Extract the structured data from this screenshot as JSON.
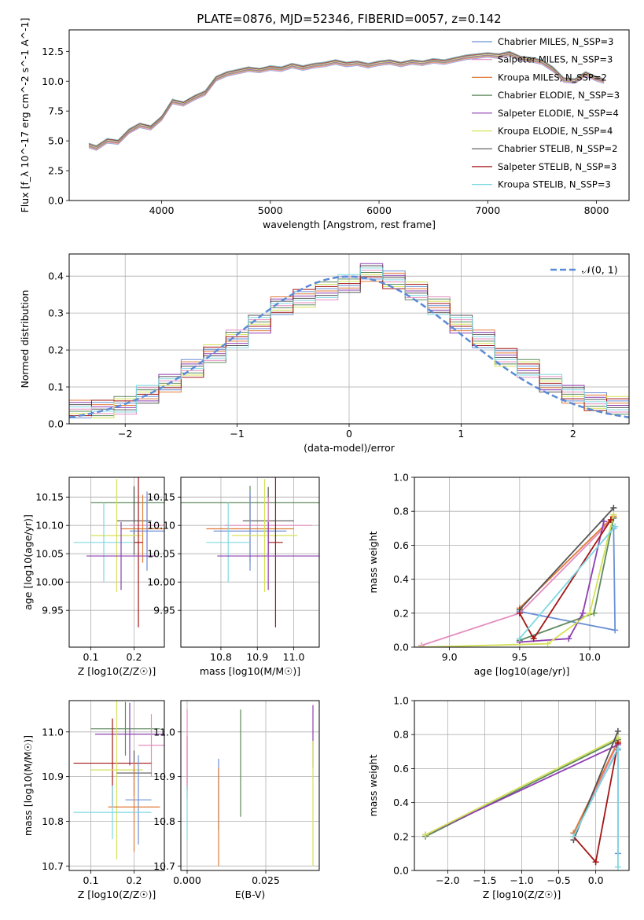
{
  "figure_title": "PLATE=0876, MJD=52346, FIBERID=0057, z=0.142",
  "colors": {
    "axis": "#000000",
    "grid": "#b0b0b0",
    "normal_curve": "#5b8bd6"
  },
  "chart_data": [
    {
      "id": "spectrum",
      "type": "line",
      "title": "PLATE=0876, MJD=52346, FIBERID=0057, z=0.142",
      "xlabel": "wavelength [Angstrom, rest frame]",
      "ylabel": "Flux [f_λ 10^-17 erg cm^-2 s^-1 A^-1]",
      "xlim": [
        3150,
        8300
      ],
      "ylim": [
        0,
        14.3
      ],
      "xticks": [
        4000,
        5000,
        6000,
        7000,
        8000
      ],
      "yticks": [
        0.0,
        2.5,
        5.0,
        7.5,
        10.0,
        12.5
      ],
      "grid": false,
      "legend_position": "right",
      "legend": [
        {
          "name": "Chabrier MILES, N_SSP=3",
          "color": "#6a90d6"
        },
        {
          "name": "Salpeter MILES, N_SSP=3",
          "color": "#e58cc0"
        },
        {
          "name": "Kroupa MILES, N_SSP=2",
          "color": "#e07b39"
        },
        {
          "name": "Chabrier ELODIE, N_SSP=3",
          "color": "#5e8a5e"
        },
        {
          "name": "Salpeter ELODIE, N_SSP=4",
          "color": "#8e3fb0"
        },
        {
          "name": "Kroupa ELODIE, N_SSP=4",
          "color": "#d4e157"
        },
        {
          "name": "Chabrier STELIB, N_SSP=2",
          "color": "#555555"
        },
        {
          "name": "Salpeter STELIB, N_SSP=3",
          "color": "#a31515"
        },
        {
          "name": "Kroupa STELIB, N_SSP=3",
          "color": "#7fd8e0"
        }
      ],
      "data_series": {
        "name": "data",
        "color": "#808080",
        "x": [
          3330,
          3400,
          3500,
          3600,
          3700,
          3800,
          3900,
          4000,
          4100,
          4200,
          4300,
          4400,
          4500,
          4600,
          4700,
          4800,
          4900,
          5000,
          5100,
          5200,
          5300,
          5400,
          5500,
          5600,
          5700,
          5800,
          5900,
          6000,
          6100,
          6200,
          6300,
          6400,
          6500,
          6600,
          6700,
          6800,
          6900,
          7000,
          7100,
          7200,
          7300,
          7400,
          7500,
          7600,
          7700,
          7800,
          7900,
          8000,
          8070
        ],
        "y": [
          4.8,
          4.6,
          5.2,
          5.0,
          6.0,
          6.5,
          6.2,
          7.0,
          8.5,
          8.2,
          8.8,
          9.2,
          10.4,
          10.8,
          11.0,
          11.2,
          11.0,
          11.3,
          11.2,
          11.5,
          11.3,
          11.5,
          11.6,
          11.8,
          11.6,
          11.7,
          11.5,
          11.7,
          11.8,
          11.6,
          11.8,
          11.7,
          11.9,
          11.8,
          12.0,
          12.2,
          12.3,
          12.4,
          12.3,
          12.5,
          12.1,
          12.0,
          11.8,
          11.2,
          10.3,
          10.2,
          10.8,
          10.4,
          10.2
        ]
      },
      "model_curve": {
        "x": [
          3330,
          3400,
          3500,
          3600,
          3700,
          3800,
          3900,
          4000,
          4100,
          4200,
          4300,
          4400,
          4500,
          4600,
          4700,
          4800,
          4900,
          5000,
          5100,
          5200,
          5300,
          5400,
          5500,
          5600,
          5700,
          5800,
          5900,
          6000,
          6100,
          6200,
          6300,
          6400,
          6500,
          6600,
          6700,
          6800,
          6900,
          7000,
          7100,
          7200,
          7300,
          7400,
          7500,
          7600,
          7700,
          7800,
          7900,
          8000,
          8070
        ],
        "y": [
          4.6,
          4.4,
          5.0,
          4.9,
          5.8,
          6.3,
          6.1,
          6.9,
          8.3,
          8.1,
          8.6,
          9.0,
          10.2,
          10.6,
          10.8,
          11.0,
          10.9,
          11.1,
          11.0,
          11.3,
          11.1,
          11.3,
          11.4,
          11.6,
          11.4,
          11.5,
          11.3,
          11.5,
          11.6,
          11.4,
          11.6,
          11.5,
          11.7,
          11.6,
          11.8,
          12.0,
          12.1,
          12.2,
          12.1,
          12.3,
          11.9,
          11.8,
          11.6,
          11.0,
          10.1,
          10.0,
          10.6,
          10.2,
          10.0
        ]
      }
    },
    {
      "id": "residuals",
      "type": "line",
      "xlabel": "(data-model)/error",
      "ylabel": "Normed distribution",
      "xlim": [
        -2.5,
        2.5
      ],
      "ylim": [
        0,
        0.46
      ],
      "xticks": [
        -2,
        -1,
        0,
        1,
        2
      ],
      "yticks": [
        0.0,
        0.1,
        0.2,
        0.3,
        0.4
      ],
      "grid": true,
      "legend_position": "top-right",
      "normal_label": "𝒩(0, 1)",
      "hist_x": [
        -2.5,
        -2.3,
        -2.1,
        -1.9,
        -1.7,
        -1.5,
        -1.3,
        -1.1,
        -0.9,
        -0.7,
        -0.5,
        -0.3,
        -0.1,
        0.1,
        0.3,
        0.5,
        0.7,
        0.9,
        1.1,
        1.3,
        1.5,
        1.7,
        1.9,
        2.1,
        2.3
      ],
      "hist_y": [
        0.04,
        0.04,
        0.05,
        0.08,
        0.11,
        0.15,
        0.19,
        0.23,
        0.27,
        0.32,
        0.34,
        0.36,
        0.38,
        0.41,
        0.39,
        0.36,
        0.32,
        0.27,
        0.23,
        0.18,
        0.15,
        0.11,
        0.08,
        0.06,
        0.05
      ]
    },
    {
      "id": "age_vs_Z",
      "type": "scatter",
      "xlabel": "Z [log10(Z/Z☉)]",
      "ylabel": "age  [log10(age/yr)]",
      "xlim": [
        0.05,
        0.27
      ],
      "ylim": [
        9.885,
        10.185
      ],
      "xticks": [
        0.1,
        0.2
      ],
      "yticks": [
        9.95,
        10.0,
        10.05,
        10.1,
        10.15
      ],
      "grid": true,
      "points": [
        {
          "x": 0.2,
          "y": 10.14,
          "xerr": 0.1,
          "yerr": 0.03,
          "color": "#5e8a5e"
        },
        {
          "x": 0.2,
          "y": 10.108,
          "xerr": 0.04,
          "yerr": 0.06,
          "color": "#555555"
        },
        {
          "x": 0.23,
          "y": 10.1,
          "xerr": 0.04,
          "yerr": 0.05,
          "color": "#e58cc0"
        },
        {
          "x": 0.22,
          "y": 10.094,
          "xerr": 0.05,
          "yerr": 0.06,
          "color": "#e07b39"
        },
        {
          "x": 0.23,
          "y": 10.09,
          "xerr": 0.04,
          "yerr": 0.07,
          "color": "#6a90d6"
        },
        {
          "x": 0.16,
          "y": 10.082,
          "xerr": 0.06,
          "yerr": 0.1,
          "color": "#d4e157"
        },
        {
          "x": 0.13,
          "y": 10.07,
          "xerr": 0.07,
          "yerr": 0.07,
          "color": "#7fd8e0"
        },
        {
          "x": 0.21,
          "y": 10.07,
          "xerr": 0.01,
          "yerr": 0.15,
          "color": "#a31515"
        },
        {
          "x": 0.17,
          "y": 10.046,
          "xerr": 0.08,
          "yerr": 0.06,
          "color": "#8e3fb0"
        }
      ]
    },
    {
      "id": "age_vs_mass",
      "type": "scatter",
      "xlabel": "mass [log10(M/M☉)]",
      "ylabel": "",
      "xlim": [
        10.69,
        11.07
      ],
      "ylim": [
        9.885,
        10.185
      ],
      "xticks": [
        10.8,
        10.9,
        11.0
      ],
      "yticks": [
        9.95,
        10.0,
        10.05,
        10.1,
        10.15
      ],
      "grid": true,
      "points": [
        {
          "x": 10.88,
          "y": 10.14,
          "xerr": 0.19,
          "yerr": 0.03,
          "color": "#5e8a5e"
        },
        {
          "x": 10.93,
          "y": 10.108,
          "xerr": 0.07,
          "yerr": 0.06,
          "color": "#555555"
        },
        {
          "x": 10.93,
          "y": 10.1,
          "xerr": 0.12,
          "yerr": 0.05,
          "color": "#e58cc0"
        },
        {
          "x": 10.88,
          "y": 10.094,
          "xerr": 0.12,
          "yerr": 0.06,
          "color": "#e07b39"
        },
        {
          "x": 10.88,
          "y": 10.09,
          "xerr": 0.1,
          "yerr": 0.07,
          "color": "#6a90d6"
        },
        {
          "x": 10.92,
          "y": 10.082,
          "xerr": 0.09,
          "yerr": 0.1,
          "color": "#d4e157"
        },
        {
          "x": 10.82,
          "y": 10.07,
          "xerr": 0.06,
          "yerr": 0.07,
          "color": "#7fd8e0"
        },
        {
          "x": 10.95,
          "y": 10.07,
          "xerr": 0.02,
          "yerr": 0.15,
          "color": "#a31515"
        },
        {
          "x": 10.93,
          "y": 10.046,
          "xerr": 0.14,
          "yerr": 0.06,
          "color": "#8e3fb0"
        }
      ]
    },
    {
      "id": "weight_vs_age",
      "type": "line",
      "xlabel": "age  [log10(age/yr)]",
      "ylabel": "mass weight",
      "xlim": [
        8.75,
        10.28
      ],
      "ylim": [
        0,
        1.0
      ],
      "xticks": [
        9.0,
        9.5,
        10.0
      ],
      "yticks": [
        0.0,
        0.2,
        0.4,
        0.6,
        0.8,
        1.0
      ],
      "grid": true,
      "series": [
        {
          "color": "#6a90d6",
          "x": [
            9.5,
            10.18,
            10.17
          ],
          "y": [
            0.21,
            0.1,
            0.7
          ]
        },
        {
          "color": "#e58cc0",
          "x": [
            8.8,
            9.5,
            10.17
          ],
          "y": [
            0.01,
            0.2,
            0.76
          ]
        },
        {
          "color": "#e07b39",
          "x": [
            9.5,
            10.17
          ],
          "y": [
            0.23,
            0.77
          ]
        },
        {
          "color": "#5e8a5e",
          "x": [
            9.5,
            10.03,
            10.17
          ],
          "y": [
            0.04,
            0.2,
            0.76
          ]
        },
        {
          "color": "#8e3fb0",
          "x": [
            9.5,
            9.85,
            9.95,
            10.1
          ],
          "y": [
            0.03,
            0.05,
            0.2,
            0.74
          ]
        },
        {
          "color": "#d4e157",
          "x": [
            8.8,
            9.7,
            10.0,
            10.17
          ],
          "y": [
            0.0,
            0.02,
            0.2,
            0.78
          ]
        },
        {
          "color": "#555555",
          "x": [
            9.5,
            10.17
          ],
          "y": [
            0.22,
            0.82
          ]
        },
        {
          "color": "#a31515",
          "x": [
            9.5,
            9.6,
            10.15
          ],
          "y": [
            0.2,
            0.05,
            0.75
          ]
        },
        {
          "color": "#7fd8e0",
          "x": [
            9.5,
            10.18
          ],
          "y": [
            0.05,
            0.71
          ]
        }
      ]
    },
    {
      "id": "mass_vs_Z",
      "type": "scatter",
      "xlabel": "Z [log10(Z/Z☉)]",
      "ylabel": "mass [log10(M/M☉)]",
      "xlim": [
        0.05,
        0.27
      ],
      "ylim": [
        10.69,
        11.07
      ],
      "xticks": [
        0.1,
        0.2
      ],
      "yticks": [
        10.7,
        10.8,
        10.9,
        11.0
      ],
      "grid": true,
      "points": [
        {
          "x": 0.18,
          "y": 11.007,
          "xerr": 0.08,
          "yerr": 0.06,
          "color": "#5e8a5e"
        },
        {
          "x": 0.19,
          "y": 10.995,
          "xerr": 0.08,
          "yerr": 0.07,
          "color": "#8e3fb0"
        },
        {
          "x": 0.24,
          "y": 10.97,
          "xerr": 0.03,
          "yerr": 0.07,
          "color": "#e58cc0"
        },
        {
          "x": 0.15,
          "y": 10.93,
          "xerr": 0.09,
          "yerr": 0.1,
          "color": "#a31515"
        },
        {
          "x": 0.16,
          "y": 10.915,
          "xerr": 0.06,
          "yerr": 0.2,
          "color": "#d4e157"
        },
        {
          "x": 0.2,
          "y": 10.908,
          "xerr": 0.04,
          "yerr": 0.05,
          "color": "#555555"
        },
        {
          "x": 0.21,
          "y": 10.848,
          "xerr": 0.03,
          "yerr": 0.1,
          "color": "#6a90d6"
        },
        {
          "x": 0.2,
          "y": 10.832,
          "xerr": 0.06,
          "yerr": 0.1,
          "color": "#e07b39"
        },
        {
          "x": 0.15,
          "y": 10.82,
          "xerr": 0.09,
          "yerr": 0.06,
          "color": "#7fd8e0"
        }
      ]
    },
    {
      "id": "mass_vs_ebv",
      "type": "scatter",
      "xlabel": "E(B-V)",
      "ylabel": "",
      "xlim": [
        -0.002,
        0.042
      ],
      "ylim": [
        10.69,
        11.07
      ],
      "xticks": [
        0.0,
        0.025
      ],
      "yticks": [
        10.7,
        10.8,
        10.9,
        11.0
      ],
      "grid": true,
      "points": [
        {
          "x": 0.0,
          "y": 10.93,
          "yerr": 0.06,
          "color": "#a31515"
        },
        {
          "x": 0.0,
          "y": 10.95,
          "yerr": 0.1,
          "color": "#e58cc0"
        },
        {
          "x": 0.0,
          "y": 10.82,
          "yerr": 0.06,
          "color": "#7fd8e0"
        },
        {
          "x": 0.01,
          "y": 10.86,
          "yerr": 0.08,
          "color": "#6a90d6"
        },
        {
          "x": 0.01,
          "y": 10.81,
          "yerr": 0.11,
          "color": "#e07b39"
        },
        {
          "x": 0.017,
          "y": 10.93,
          "yerr": 0.12,
          "color": "#5e8a5e"
        },
        {
          "x": 0.04,
          "y": 10.99,
          "yerr": 0.07,
          "color": "#8e3fb0"
        },
        {
          "x": 0.04,
          "y": 10.84,
          "yerr": 0.14,
          "color": "#d4e157"
        }
      ]
    },
    {
      "id": "weight_vs_Z",
      "type": "line",
      "xlabel": "Z [log10(Z/Z☉)]",
      "ylabel": "mass weight",
      "xlim": [
        -2.45,
        0.45
      ],
      "ylim": [
        0,
        1.0
      ],
      "xticks": [
        -2.0,
        -1.5,
        -1.0,
        -0.5,
        0.0
      ],
      "yticks": [
        0.0,
        0.2,
        0.4,
        0.6,
        0.8,
        1.0
      ],
      "grid": true,
      "series": [
        {
          "color": "#6a90d6",
          "x": [
            -0.3,
            0.3,
            0.3
          ],
          "y": [
            0.22,
            0.71,
            0.1
          ]
        },
        {
          "color": "#e58cc0",
          "x": [
            -0.3,
            0.3
          ],
          "y": [
            0.2,
            0.75
          ]
        },
        {
          "color": "#e07b39",
          "x": [
            -0.3,
            0.3
          ],
          "y": [
            0.22,
            0.76
          ]
        },
        {
          "color": "#5e8a5e",
          "x": [
            -2.3,
            0.3
          ],
          "y": [
            0.2,
            0.77
          ]
        },
        {
          "color": "#8e3fb0",
          "x": [
            -2.3,
            0.3
          ],
          "y": [
            0.21,
            0.74
          ]
        },
        {
          "color": "#d4e157",
          "x": [
            -2.3,
            0.3
          ],
          "y": [
            0.21,
            0.78
          ]
        },
        {
          "color": "#555555",
          "x": [
            -0.3,
            0.3
          ],
          "y": [
            0.18,
            0.82
          ]
        },
        {
          "color": "#a31515",
          "x": [
            -0.3,
            0.0,
            0.3
          ],
          "y": [
            0.2,
            0.05,
            0.75
          ]
        },
        {
          "color": "#7fd8e0",
          "x": [
            -0.3,
            0.3,
            0.3
          ],
          "y": [
            0.2,
            0.72,
            0.02
          ]
        }
      ]
    }
  ]
}
